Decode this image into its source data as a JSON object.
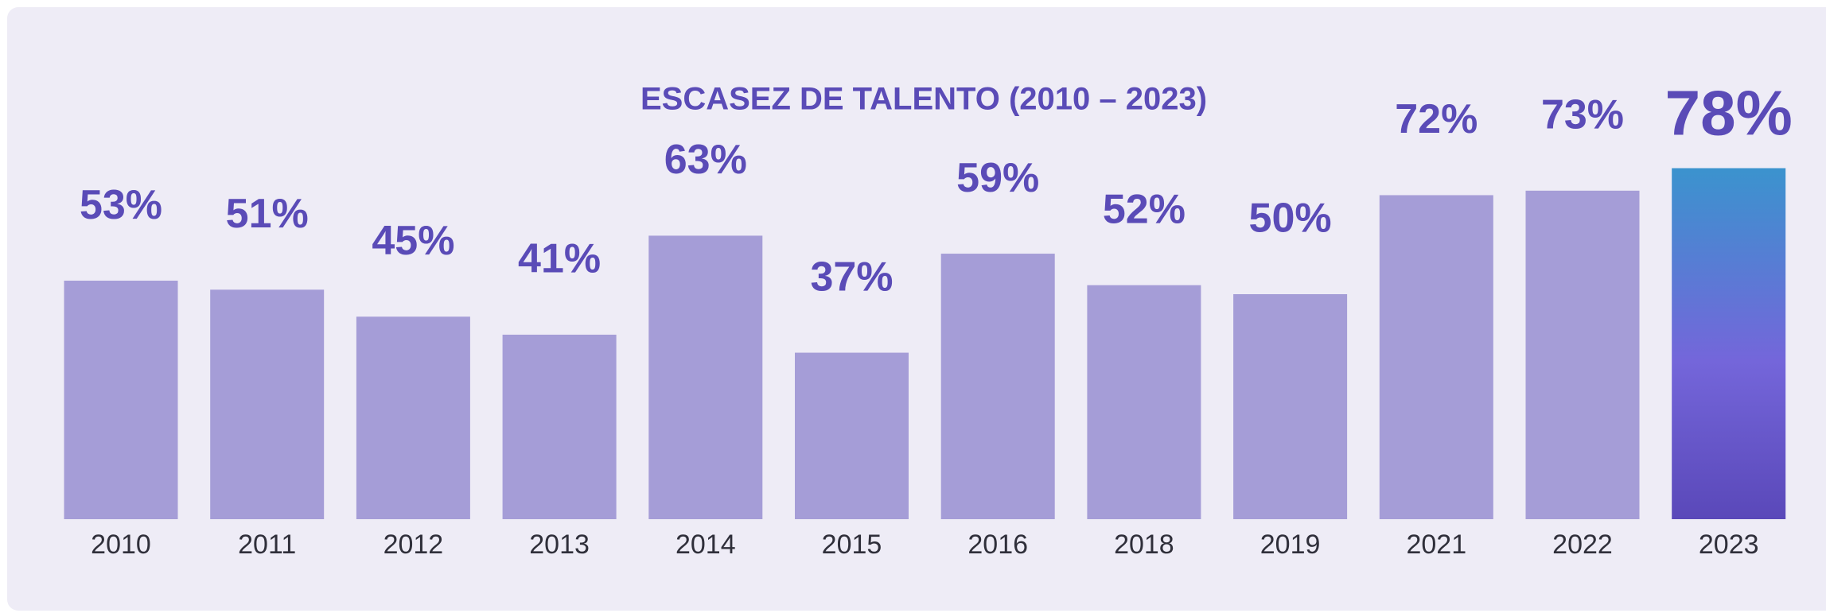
{
  "chart_data": {
    "type": "bar",
    "title": "ESCASEZ DE TALENTO (2010 – 2023)",
    "categories": [
      "2010",
      "2011",
      "2012",
      "2013",
      "2014",
      "2015",
      "2016",
      "2018",
      "2019",
      "2021",
      "2022",
      "2023"
    ],
    "values": [
      53,
      51,
      45,
      41,
      63,
      37,
      59,
      52,
      50,
      72,
      73,
      78
    ],
    "value_labels": [
      "53%",
      "51%",
      "45%",
      "41%",
      "63%",
      "37%",
      "59%",
      "52%",
      "50%",
      "72%",
      "73%",
      "78%"
    ],
    "color": "#a59dd7",
    "highlight_gradient": [
      "#3b93ce",
      "#7466da",
      "#5a48b9"
    ],
    "label_color": "#5a4bb7"
  }
}
